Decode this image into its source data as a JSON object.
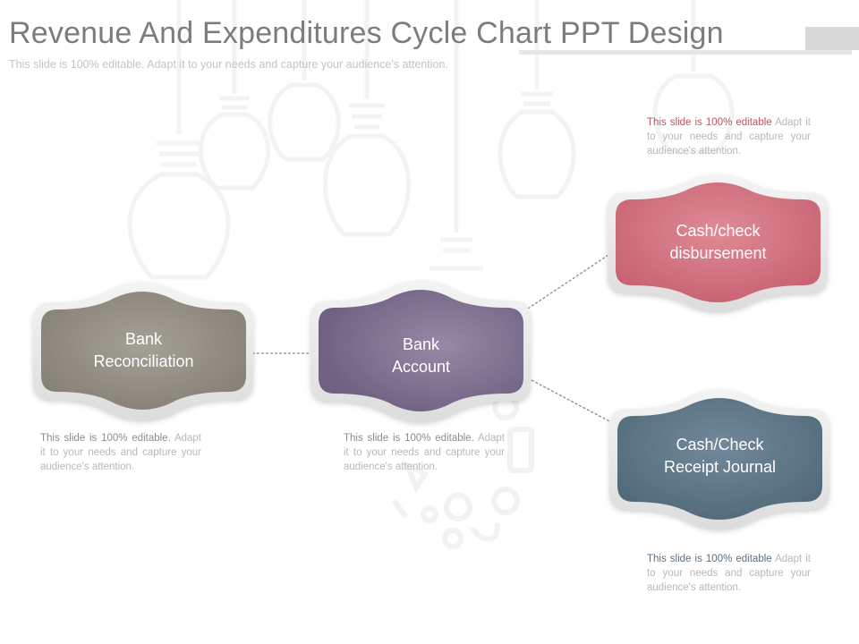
{
  "slide": {
    "title": "Revenue And Expenditures Cycle Chart PPT Design",
    "subtitle": "This slide is 100% editable. Adapt it to your needs and capture your audience's attention."
  },
  "colors": {
    "gray_node": "#8f8b80",
    "purple_node": "#7d6e8f",
    "red_node": "#d47582",
    "slate_node": "#607988"
  },
  "nodes": {
    "bank_reconciliation": {
      "line1": "Bank",
      "line2": "Reconciliation"
    },
    "bank_account": {
      "line1": "Bank",
      "line2": "Account"
    },
    "cash_check_disbursement": {
      "line1": "Cash/check",
      "line2": "disbursement"
    },
    "cash_check_receipt_journal": {
      "line1": "Cash/Check",
      "line2": "Receipt  Journal"
    }
  },
  "descriptions": {
    "bank_reconciliation": {
      "head": "This slide is 100% editable.",
      "body": "Adapt it to your needs and capture your audience's attention."
    },
    "bank_account": {
      "head": "This slide is 100% editable.",
      "body": "Adapt it to your needs and capture your audience's attention."
    },
    "cash_check_disbursement": {
      "head": "This slide is 100% editable",
      "body": "Adapt it to your needs and capture your audience's attention."
    },
    "cash_check_receipt_journal": {
      "head": "This slide is 100% editable",
      "body": "Adapt it to your needs and capture your audience's attention."
    }
  }
}
